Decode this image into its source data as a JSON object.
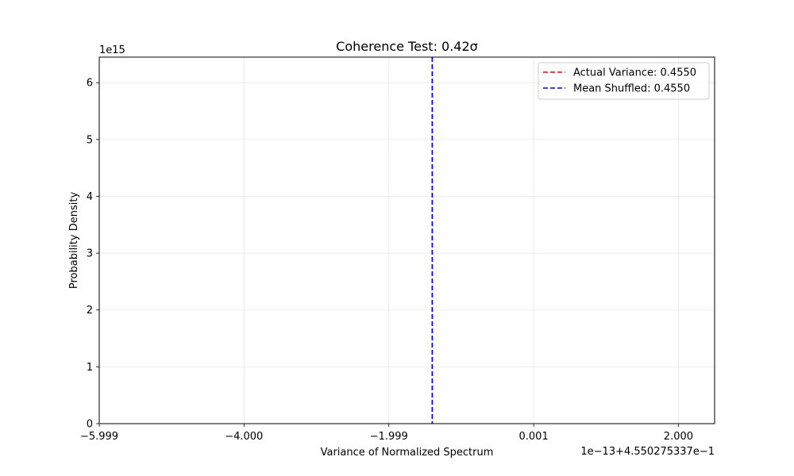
{
  "chart_data": {
    "type": "line",
    "title": "Coherence Test: 0.42σ",
    "xlabel": "Variance of Normalized Spectrum",
    "ylabel": "Probability Density",
    "x_offset_label": "1e−13+4.550275337e−1",
    "y_scale_label": "1e15",
    "xlim": [
      -5.999,
      2.5
    ],
    "ylim": [
      0,
      6.45
    ],
    "x_ticks": [
      {
        "value": -5.999,
        "label": "−5.999"
      },
      {
        "value": -4.0,
        "label": "−4.000"
      },
      {
        "value": -1.999,
        "label": "−1.999"
      },
      {
        "value": 0.001,
        "label": "0.001"
      },
      {
        "value": 2.0,
        "label": "2.000"
      }
    ],
    "y_ticks": [
      {
        "value": 0,
        "label": "0"
      },
      {
        "value": 1,
        "label": "1"
      },
      {
        "value": 2,
        "label": "2"
      },
      {
        "value": 3,
        "label": "3"
      },
      {
        "value": 4,
        "label": "4"
      },
      {
        "value": 5,
        "label": "5"
      },
      {
        "value": 6,
        "label": "6"
      }
    ],
    "grid": true,
    "legend_position": "top-right",
    "vlines": [
      {
        "name": "Actual Variance: 0.4550",
        "x": -1.4,
        "color": "#ff0000",
        "style": "dashed"
      },
      {
        "name": "Mean Shuffled: 0.4550",
        "x": -1.4,
        "color": "#0000ff",
        "style": "dashed"
      }
    ]
  }
}
